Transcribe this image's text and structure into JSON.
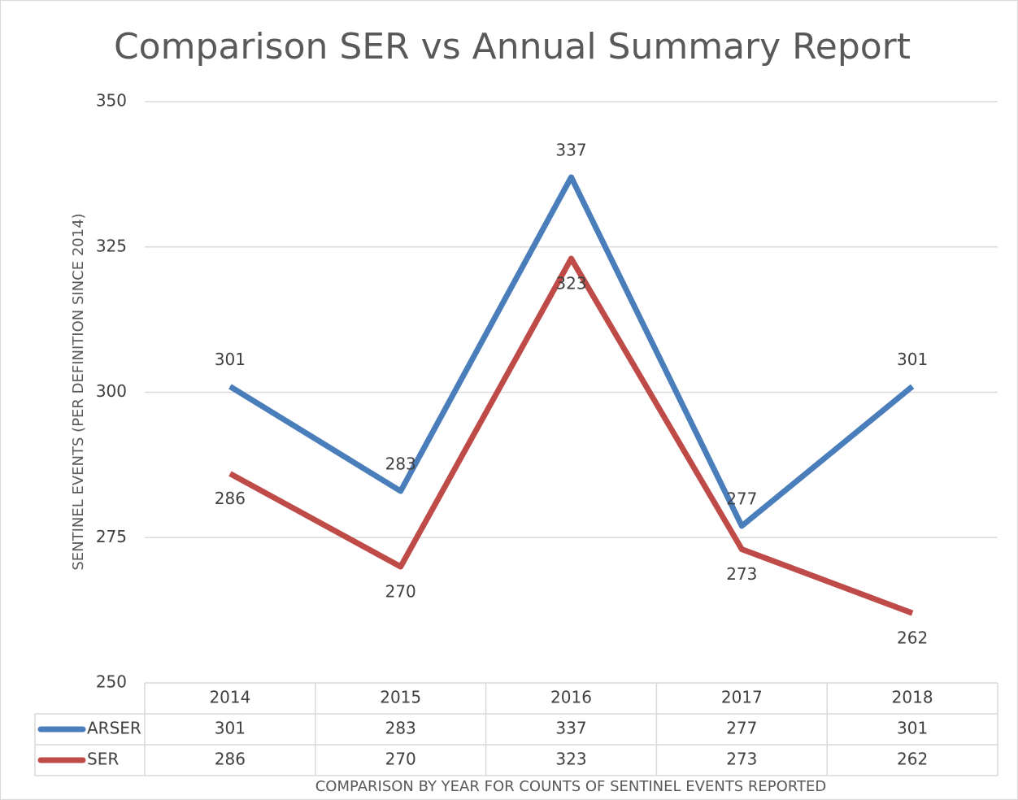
{
  "chart_data": {
    "type": "line",
    "title": "Comparison SER vs Annual Summary Report",
    "y_label": "SENTINEL EVENTS (PER DEFINITION SINCE 2014)",
    "x_label": "COMPARISON BY YEAR FOR COUNTS OF SENTINEL EVENTS REPORTED",
    "categories": [
      "2014",
      "2015",
      "2016",
      "2017",
      "2018"
    ],
    "series": [
      {
        "name": "ARSER",
        "color": "#4a7ebb",
        "values": [
          301,
          283,
          337,
          277,
          301
        ]
      },
      {
        "name": "SER",
        "color": "#be4b48",
        "values": [
          286,
          270,
          323,
          273,
          262
        ]
      }
    ],
    "ylim": [
      250,
      350
    ],
    "yticks": [
      250,
      275,
      300,
      325,
      350
    ],
    "grid": true,
    "data_table": true
  }
}
